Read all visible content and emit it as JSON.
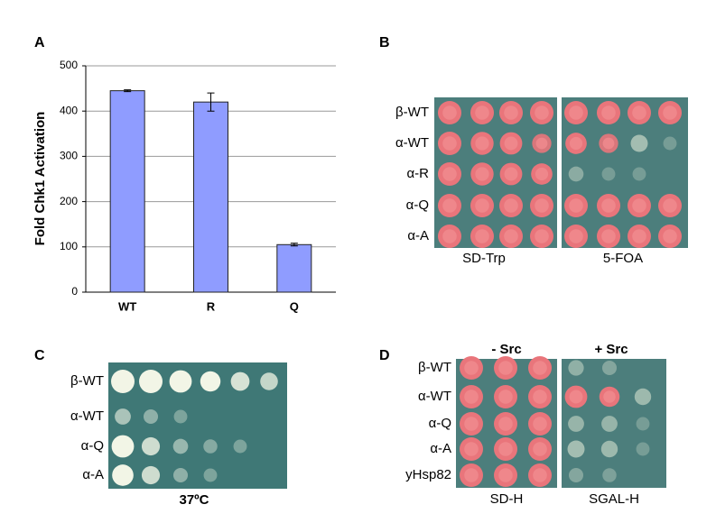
{
  "chart_data": {
    "type": "bar",
    "panel": "A",
    "y_label": "Fold Chk1 Activation",
    "categories": [
      "WT",
      "R",
      "Q"
    ],
    "values": [
      445,
      420,
      105
    ],
    "errors": [
      2,
      20,
      3
    ],
    "color": "#8f9cff",
    "ylim": [
      0,
      500
    ],
    "yticks": [
      0,
      100,
      200,
      300,
      400,
      500
    ],
    "grid": true
  },
  "panel_b": {
    "panel": "B",
    "rows": [
      "β-WT",
      "α-WT",
      "α-R",
      "α-Q",
      "α-A"
    ],
    "columns": [
      "SD-Trp",
      "5-FOA"
    ]
  },
  "panel_c": {
    "panel": "C",
    "rows": [
      "β-WT",
      "α-WT",
      "α-Q",
      "α-A"
    ],
    "condition": "37ºC"
  },
  "panel_d": {
    "panel": "D",
    "rows": [
      "β-WT",
      "α-WT",
      "α-Q",
      "α-A",
      "yHsp82"
    ],
    "headers": [
      "- Src",
      "+ Src"
    ],
    "columns": [
      "SD-H",
      "SGAL-H"
    ]
  }
}
